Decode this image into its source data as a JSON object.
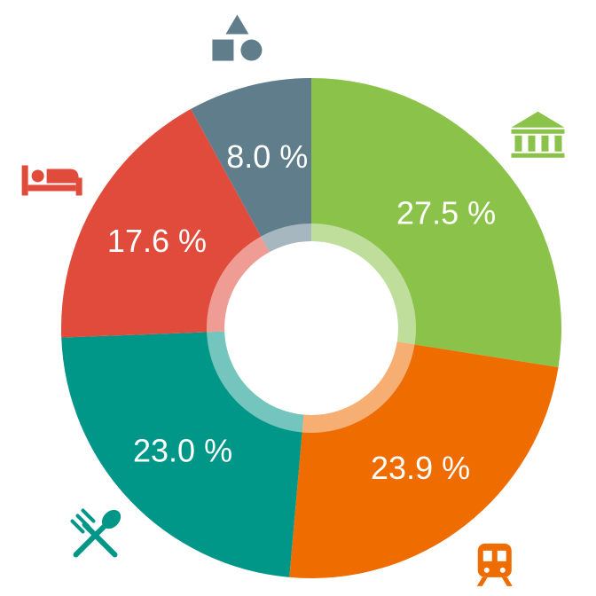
{
  "chart_data": {
    "type": "pie",
    "donut": true,
    "title": "",
    "slices": [
      {
        "label": "Sightseeing",
        "value": 27.5,
        "display": "27.5 %",
        "color": "#8bc34a",
        "icon": "bank-icon"
      },
      {
        "label": "Transport",
        "value": 23.9,
        "display": "23.9 %",
        "color": "#ef6c00",
        "icon": "train-icon"
      },
      {
        "label": "Food",
        "value": 23.0,
        "display": "23.0 %",
        "color": "#009688",
        "icon": "fork-spoon-icon"
      },
      {
        "label": "Accommodation",
        "value": 17.6,
        "display": "17.6 %",
        "color": "#e04b3c",
        "icon": "bed-icon"
      },
      {
        "label": "Other",
        "value": 8.0,
        "display": "8.0 %",
        "color": "#607d8b",
        "icon": "shapes-icon"
      }
    ],
    "background": "#ffffff"
  }
}
